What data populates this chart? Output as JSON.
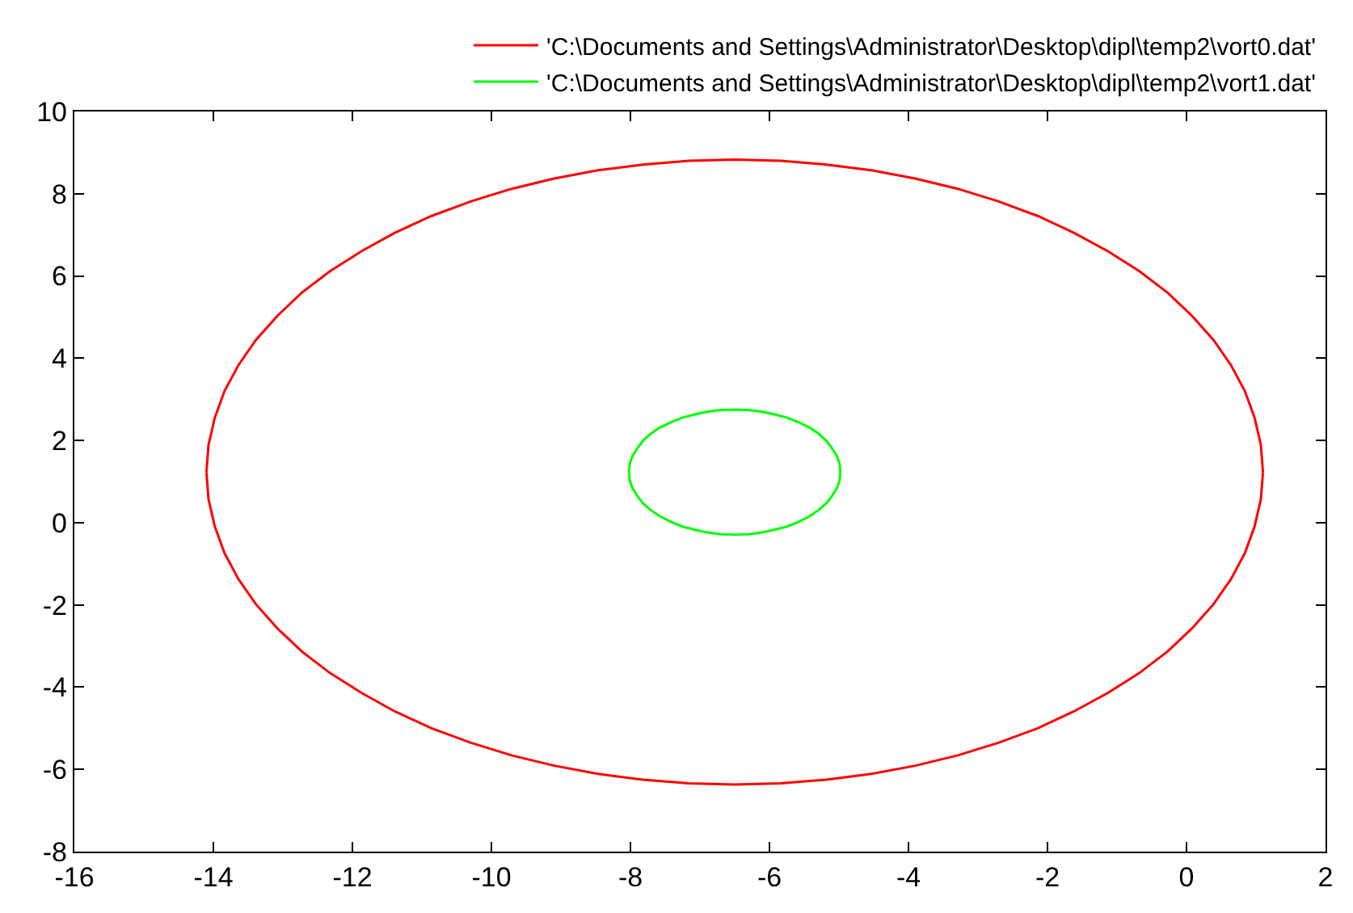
{
  "chart_data": {
    "type": "line",
    "series": [
      {
        "name": "'C:\\Documents and Settings\\Administrator\\Desktop\\dipl\\temp2\\vort0.dat'",
        "color": "#ff0000",
        "x": [
          -14.1,
          -14.07,
          -13.98,
          -13.84,
          -13.64,
          -13.39,
          -13.08,
          -12.73,
          -12.32,
          -11.87,
          -11.39,
          -10.86,
          -10.3,
          -9.71,
          -9.1,
          -8.47,
          -7.82,
          -7.16,
          -6.5,
          -5.84,
          -5.18,
          -4.53,
          -3.9,
          -3.29,
          -2.7,
          -2.14,
          -1.62,
          -1.13,
          -0.68,
          -0.27,
          0.08,
          0.39,
          0.64,
          0.84,
          0.98,
          1.07,
          1.1,
          null,
          -14.1,
          -14.07,
          -13.98,
          -13.84,
          -13.64,
          -13.39,
          -13.08,
          -12.73,
          -12.32,
          -11.87,
          -11.39,
          -10.86,
          -10.3,
          -9.71,
          -9.1,
          -8.47,
          -7.82,
          -7.16,
          -6.5,
          -5.84,
          -5.18,
          -4.53,
          -3.9,
          -3.29,
          -2.7,
          -2.14,
          -1.62,
          -1.13,
          -0.68,
          -0.27,
          0.08,
          0.39,
          0.64,
          0.84,
          0.98,
          1.07,
          1.1
        ],
        "values": [
          1.23,
          1.89,
          2.55,
          3.2,
          3.83,
          4.44,
          5.03,
          5.59,
          6.12,
          6.6,
          7.05,
          7.46,
          7.81,
          8.12,
          8.37,
          8.57,
          8.71,
          8.8,
          8.83,
          8.8,
          8.71,
          8.57,
          8.37,
          8.12,
          7.81,
          7.46,
          7.05,
          6.6,
          6.12,
          5.59,
          5.03,
          4.44,
          3.83,
          3.2,
          2.55,
          1.89,
          1.23,
          null,
          1.23,
          0.57,
          -0.09,
          -0.74,
          -1.37,
          -1.98,
          -2.57,
          -3.13,
          -3.66,
          -4.14,
          -4.59,
          -5.0,
          -5.35,
          -5.66,
          -5.91,
          -6.11,
          -6.25,
          -6.34,
          -6.37,
          -6.34,
          -6.25,
          -6.11,
          -5.91,
          -5.66,
          -5.35,
          -5.0,
          -4.59,
          -4.14,
          -3.66,
          -3.13,
          -2.57,
          -1.98,
          -1.37,
          -0.74,
          -0.09,
          0.57,
          1.23
        ]
      },
      {
        "name": "'C:\\Documents and Settings\\Administrator\\Desktop\\dipl\\temp2\\vort1.dat'",
        "color": "#00ff00",
        "x": [
          -8.02,
          -8.01,
          -7.97,
          -7.9,
          -7.82,
          -7.71,
          -7.58,
          -7.42,
          -7.26,
          -7.08,
          -6.89,
          -6.7,
          -6.5,
          -6.3,
          -6.11,
          -5.92,
          -5.74,
          -5.58,
          -5.42,
          -5.29,
          -5.18,
          -5.1,
          -5.03,
          -4.99,
          -4.98,
          null,
          -8.02,
          -8.01,
          -7.97,
          -7.9,
          -7.82,
          -7.71,
          -7.58,
          -7.42,
          -7.26,
          -7.08,
          -6.89,
          -6.7,
          -6.5,
          -6.3,
          -6.11,
          -5.92,
          -5.74,
          -5.58,
          -5.42,
          -5.29,
          -5.18,
          -5.1,
          -5.03,
          -4.99,
          -4.98
        ],
        "values": [
          1.23,
          1.43,
          1.62,
          1.81,
          1.99,
          2.16,
          2.31,
          2.44,
          2.55,
          2.63,
          2.7,
          2.74,
          2.75,
          2.74,
          2.7,
          2.63,
          2.55,
          2.44,
          2.31,
          2.16,
          1.99,
          1.81,
          1.62,
          1.43,
          1.23,
          null,
          1.23,
          1.03,
          0.84,
          0.65,
          0.47,
          0.31,
          0.16,
          0.02,
          -0.09,
          -0.17,
          -0.24,
          -0.28,
          -0.29,
          -0.28,
          -0.24,
          -0.17,
          -0.09,
          0.02,
          0.16,
          0.31,
          0.47,
          0.65,
          0.84,
          1.03,
          1.23
        ]
      }
    ],
    "xlim": [
      -16,
      2
    ],
    "ylim": [
      -8,
      10
    ],
    "xticks": [
      -16,
      -14,
      -12,
      -10,
      -8,
      -6,
      -4,
      -2,
      0,
      2
    ],
    "yticks": [
      -8,
      -6,
      -4,
      -2,
      0,
      2,
      4,
      6,
      8,
      10
    ],
    "grid": false,
    "legend": "top right",
    "marker": "none",
    "line_style": "solid"
  }
}
